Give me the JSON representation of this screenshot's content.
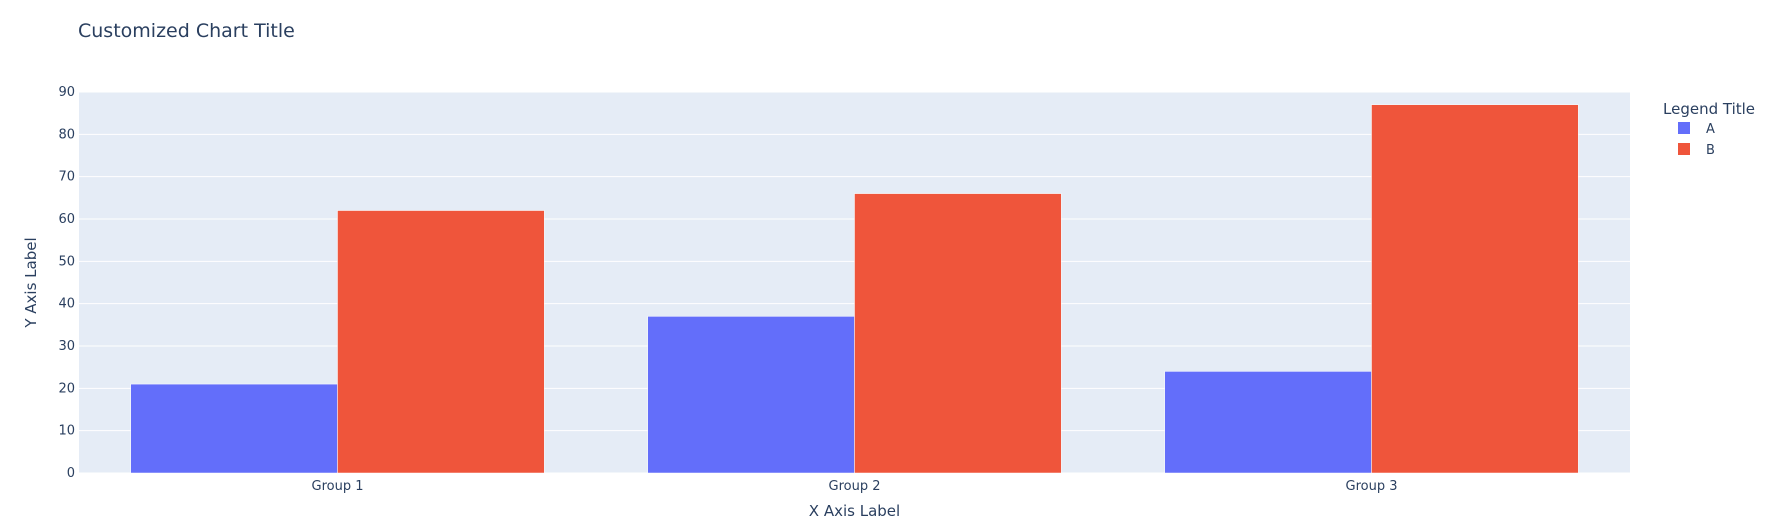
{
  "chart_data": {
    "type": "bar",
    "title": "Customized Chart Title",
    "xlabel": "X Axis Label",
    "ylabel": "Y Axis Label",
    "categories": [
      "Group 1",
      "Group 2",
      "Group 3"
    ],
    "series": [
      {
        "name": "A",
        "values": [
          21,
          37,
          24
        ],
        "color": "#636efa"
      },
      {
        "name": "B",
        "values": [
          62,
          66,
          87
        ],
        "color": "#ef553b"
      }
    ],
    "ylim": [
      0,
      90
    ],
    "yticks": [
      0,
      10,
      20,
      30,
      40,
      50,
      60,
      70,
      80,
      90
    ],
    "grid": true,
    "legend": {
      "title": "Legend Title",
      "placement": "top-right"
    },
    "colors": {
      "plot_background": "#e5ecf6",
      "grid": "#ffffff",
      "text": "#2a3f5f"
    }
  }
}
